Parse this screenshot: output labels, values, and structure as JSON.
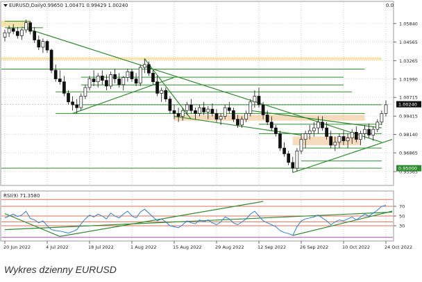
{
  "chart_data": {
    "type": "candlestick",
    "header_label": "EURUSD,Daily",
    "ohlc_readout": "0.99650 1.00471 0.99429 1.00240",
    "corner_value": "0.0",
    "price_axis": {
      "ylim": [
        0.947,
        1.068
      ],
      "ticks": [
        "1.05840",
        "1.04565",
        "1.03265",
        "1.01990",
        "1.00715",
        "0.99415",
        "0.98140",
        "0.96865",
        "0.95565"
      ],
      "current_price": "1.00240",
      "level_label": "0.95000"
    },
    "time_axis": {
      "ticks": [
        "20 Jun 2022",
        "4 Jul 2022",
        "18 Jul 2022",
        "1 Aug 2022",
        "15 Aug 2022",
        "29 Aug 2022",
        "12 Sep 2022",
        "26 Sep 2022",
        "10 Oct 2022",
        "24 Oct 2022"
      ],
      "tick_index": [
        0,
        10,
        20,
        30,
        40,
        50,
        60,
        70,
        80,
        90
      ]
    },
    "candles": [
      [
        1.049,
        1.054,
        1.046,
        1.052
      ],
      [
        1.052,
        1.057,
        1.049,
        1.055
      ],
      [
        1.055,
        1.058,
        1.051,
        1.053
      ],
      [
        1.053,
        1.056,
        1.048,
        1.05
      ],
      [
        1.05,
        1.055,
        1.047,
        1.054
      ],
      [
        1.054,
        1.061,
        1.052,
        1.059
      ],
      [
        1.059,
        1.06,
        1.051,
        1.053
      ],
      [
        1.053,
        1.056,
        1.045,
        1.047
      ],
      [
        1.047,
        1.05,
        1.04,
        1.042
      ],
      [
        1.042,
        1.048,
        1.038,
        1.046
      ],
      [
        1.046,
        1.047,
        1.038,
        1.04
      ],
      [
        1.04,
        1.041,
        1.024,
        1.026
      ],
      [
        1.026,
        1.03,
        1.018,
        1.02
      ],
      [
        1.02,
        1.026,
        1.016,
        1.018
      ],
      [
        1.018,
        1.022,
        1.008,
        1.01
      ],
      [
        1.01,
        1.012,
        1.002,
        1.004
      ],
      [
        1.004,
        1.008,
        0.998,
        1.002
      ],
      [
        1.002,
        1.006,
        0.996,
        1.0
      ],
      [
        1.0,
        1.01,
        0.998,
        1.008
      ],
      [
        1.008,
        1.016,
        1.006,
        1.014
      ],
      [
        1.014,
        1.022,
        1.012,
        1.02
      ],
      [
        1.02,
        1.026,
        1.015,
        1.018
      ],
      [
        1.018,
        1.024,
        1.014,
        1.022
      ],
      [
        1.022,
        1.026,
        1.016,
        1.019
      ],
      [
        1.019,
        1.023,
        1.012,
        1.015
      ],
      [
        1.015,
        1.025,
        1.013,
        1.023
      ],
      [
        1.023,
        1.027,
        1.017,
        1.02
      ],
      [
        1.02,
        1.024,
        1.014,
        1.016
      ],
      [
        1.016,
        1.022,
        1.012,
        1.021
      ],
      [
        1.021,
        1.027,
        1.018,
        1.025
      ],
      [
        1.025,
        1.027,
        1.018,
        1.02
      ],
      [
        1.02,
        1.024,
        1.015,
        1.017
      ],
      [
        1.017,
        1.03,
        1.015,
        1.028
      ],
      [
        1.028,
        1.034,
        1.024,
        1.03
      ],
      [
        1.03,
        1.032,
        1.022,
        1.024
      ],
      [
        1.024,
        1.026,
        1.016,
        1.018
      ],
      [
        1.018,
        1.022,
        1.008,
        1.01
      ],
      [
        1.01,
        1.014,
        1.004,
        1.012
      ],
      [
        1.012,
        1.014,
        1.004,
        1.006
      ],
      [
        1.006,
        1.008,
        0.996,
        0.998
      ],
      [
        0.998,
        1.002,
        0.992,
        0.996
      ],
      [
        0.996,
        1.0,
        0.99,
        0.994
      ],
      [
        0.994,
        1.0,
        0.991,
        0.998
      ],
      [
        0.998,
        1.004,
        0.995,
        1.002
      ],
      [
        1.002,
        1.006,
        0.996,
        0.998
      ],
      [
        0.998,
        1.0,
        0.992,
        0.996
      ],
      [
        0.996,
        1.002,
        0.994,
        1.0
      ],
      [
        1.0,
        1.004,
        0.995,
        0.997
      ],
      [
        0.997,
        1.001,
        0.992,
        0.999
      ],
      [
        0.999,
        1.003,
        0.994,
        0.996
      ],
      [
        0.996,
        0.999,
        0.99,
        0.992
      ],
      [
        0.992,
        0.996,
        0.988,
        0.994
      ],
      [
        0.994,
        1.002,
        0.992,
        1.0
      ],
      [
        1.0,
        1.004,
        0.996,
        0.998
      ],
      [
        0.998,
        1.0,
        0.99,
        0.992
      ],
      [
        0.992,
        0.995,
        0.986,
        0.988
      ],
      [
        0.988,
        0.994,
        0.986,
        0.992
      ],
      [
        0.992,
        0.998,
        0.99,
        0.996
      ],
      [
        0.996,
        1.006,
        0.994,
        1.004
      ],
      [
        1.004,
        1.012,
        1.0,
        1.008
      ],
      [
        1.008,
        1.014,
        1.0,
        1.002
      ],
      [
        1.002,
        1.004,
        0.992,
        0.995
      ],
      [
        0.995,
        0.998,
        0.988,
        0.99
      ],
      [
        0.99,
        0.994,
        0.984,
        0.986
      ],
      [
        0.986,
        0.988,
        0.98,
        0.982
      ],
      [
        0.982,
        0.984,
        0.97,
        0.972
      ],
      [
        0.972,
        0.976,
        0.966,
        0.968
      ],
      [
        0.968,
        0.97,
        0.96,
        0.962
      ],
      [
        0.962,
        0.966,
        0.955,
        0.958
      ],
      [
        0.958,
        0.972,
        0.956,
        0.97
      ],
      [
        0.97,
        0.982,
        0.968,
        0.978
      ],
      [
        0.978,
        0.984,
        0.972,
        0.982
      ],
      [
        0.982,
        0.988,
        0.978,
        0.984
      ],
      [
        0.984,
        0.99,
        0.98,
        0.986
      ],
      [
        0.986,
        0.994,
        0.982,
        0.99
      ],
      [
        0.99,
        0.994,
        0.984,
        0.986
      ],
      [
        0.986,
        0.99,
        0.978,
        0.98
      ],
      [
        0.98,
        0.984,
        0.972,
        0.974
      ],
      [
        0.974,
        0.98,
        0.97,
        0.976
      ],
      [
        0.976,
        0.982,
        0.972,
        0.98
      ],
      [
        0.98,
        0.984,
        0.974,
        0.977
      ],
      [
        0.977,
        0.982,
        0.972,
        0.979
      ],
      [
        0.979,
        0.985,
        0.975,
        0.983
      ],
      [
        0.983,
        0.987,
        0.976,
        0.978
      ],
      [
        0.978,
        0.984,
        0.974,
        0.982
      ],
      [
        0.982,
        0.988,
        0.978,
        0.985
      ],
      [
        0.985,
        0.989,
        0.979,
        0.981
      ],
      [
        0.981,
        0.987,
        0.977,
        0.985
      ],
      [
        0.985,
        0.992,
        0.983,
        0.99
      ],
      [
        0.99,
        0.998,
        0.988,
        0.996
      ],
      [
        0.996,
        1.005,
        0.994,
        1.002
      ]
    ],
    "horizontal_lines": [
      {
        "y": 1.06,
        "from": 0,
        "to": 6,
        "color": "#2e8b2e"
      },
      {
        "y": 1.0555,
        "from": 0,
        "to": 9,
        "color": "#2e8b2e"
      },
      {
        "y": 1.0268,
        "from": -3,
        "to": 85,
        "color": "#2e8b2e"
      },
      {
        "y": 1.0212,
        "from": 18,
        "to": 80,
        "color": "#2e8b2e"
      },
      {
        "y": 1.0158,
        "from": 18,
        "to": 80,
        "color": "#2e8b2e"
      },
      {
        "y": 1.011,
        "from": 12,
        "to": 82,
        "color": "#2e8b2e"
      },
      {
        "y": 1.002,
        "from": 16,
        "to": 89,
        "color": "#2e8b2e"
      },
      {
        "y": 0.996,
        "from": 12,
        "to": 85,
        "color": "#2e8b2e"
      },
      {
        "y": 0.9885,
        "from": 60,
        "to": 89,
        "color": "#2e8b2e"
      },
      {
        "y": 0.982,
        "from": 60,
        "to": 89,
        "color": "#2e8b2e"
      },
      {
        "y": 0.972,
        "from": 70,
        "to": 89,
        "color": "#2e8b2e"
      },
      {
        "y": 0.963,
        "from": 70,
        "to": 89,
        "color": "#2e8b2e"
      },
      {
        "y": 0.958,
        "from": -3,
        "to": 89,
        "color": "#2e8b2e"
      }
    ],
    "zones": [
      {
        "y1": 1.056,
        "y2": 1.0605,
        "from": -1,
        "to": 6,
        "color": "#f5e2a0"
      },
      {
        "y1": 1.033,
        "y2": 1.035,
        "from": -3,
        "to": 89,
        "color": "#f5e2a0"
      },
      {
        "y1": 0.991,
        "y2": 0.995,
        "from": 40,
        "to": 85,
        "color": "#f5d5b0"
      },
      {
        "y1": 0.974,
        "y2": 0.98,
        "from": 68,
        "to": 84,
        "color": "#f5d5b0"
      }
    ],
    "trend_lines": [
      {
        "x1": 4,
        "y1": 1.056,
        "x2": 89,
        "y2": 0.976
      },
      {
        "x1": 16,
        "y1": 0.996,
        "x2": 40,
        "y2": 1.021
      },
      {
        "x1": 33,
        "y1": 1.034,
        "x2": 44,
        "y2": 0.992
      },
      {
        "x1": 40,
        "y1": 0.994,
        "x2": 70,
        "y2": 0.981
      },
      {
        "x1": 58,
        "y1": 0.998,
        "x2": 89,
        "y2": 0.986
      },
      {
        "x1": 68,
        "y1": 0.955,
        "x2": 92,
        "y2": 0.978
      }
    ],
    "rsi": {
      "label": "RSI(9) 71.3580",
      "ylim": [
        0,
        100
      ],
      "ticks": [
        70,
        50,
        30
      ],
      "levels": [
        {
          "y": 84,
          "color": "#d8705a"
        },
        {
          "y": 70,
          "color": "#d8705a"
        },
        {
          "y": 50,
          "color": "#d8705a"
        },
        {
          "y": 38,
          "color": "#d8705a"
        },
        {
          "y": 30,
          "color": "#d8705a"
        },
        {
          "y": 6,
          "color": "#b04ac0"
        }
      ],
      "values": [
        46,
        50,
        54,
        49,
        52,
        60,
        45,
        42,
        36,
        40,
        30,
        22,
        20,
        19,
        17,
        15,
        18,
        22,
        34,
        44,
        52,
        48,
        54,
        50,
        44,
        56,
        50,
        46,
        54,
        60,
        50,
        46,
        58,
        64,
        56,
        48,
        40,
        44,
        38,
        30,
        28,
        26,
        32,
        40,
        36,
        34,
        42,
        38,
        42,
        36,
        32,
        38,
        48,
        44,
        36,
        32,
        38,
        44,
        54,
        60,
        50,
        40,
        36,
        32,
        28,
        20,
        16,
        14,
        10,
        28,
        40,
        44,
        46,
        48,
        52,
        46,
        40,
        32,
        38,
        42,
        40,
        44,
        48,
        42,
        48,
        54,
        50,
        56,
        62,
        70,
        72
      ],
      "trend_lines": [
        {
          "x1": 0,
          "y1": 55,
          "x2": 13,
          "y2": 8
        },
        {
          "x1": 13,
          "y1": 8,
          "x2": 61,
          "y2": 80
        },
        {
          "x1": 0,
          "y1": 22,
          "x2": 92,
          "y2": 58
        },
        {
          "x1": 68,
          "y1": 10,
          "x2": 92,
          "y2": 60
        }
      ]
    },
    "caption": "Wykres dzienny EURUSD"
  }
}
